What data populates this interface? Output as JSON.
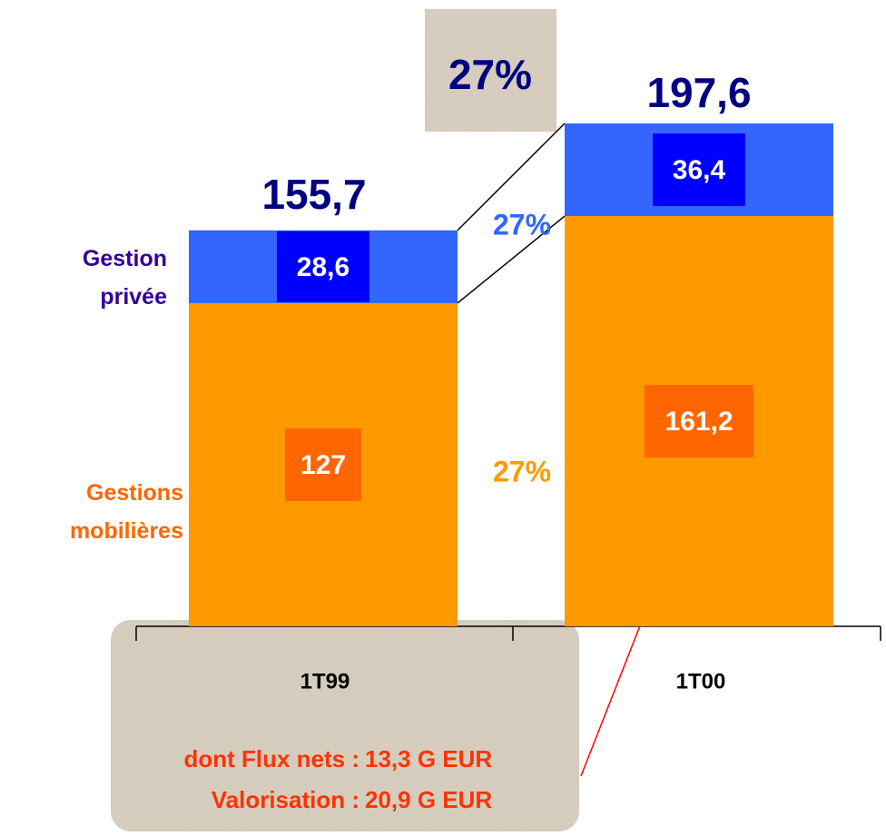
{
  "chart_data": {
    "type": "bar",
    "stacked": true,
    "categories": [
      "1T99",
      "1T00"
    ],
    "series": [
      {
        "name": "Gestions mobilières",
        "color": "#FF9900",
        "label_box_color": "#FF6600",
        "name_color": "#FF6600",
        "values": [
          127,
          161.2
        ],
        "value_labels": [
          "127",
          "161,2"
        ]
      },
      {
        "name": "Gestion privée",
        "color": "#3366FF",
        "label_box_color": "#0000FF",
        "name_color": "#330099",
        "values": [
          28.6,
          36.4
        ],
        "value_labels": [
          "28,6",
          "36,4"
        ]
      }
    ],
    "totals": [
      155.7,
      197.6
    ],
    "total_labels": [
      "155,7",
      "197,6"
    ],
    "total_color": "#000080",
    "growth_labels": [
      {
        "text": "27%",
        "color": "#000080"
      },
      {
        "text": "27%",
        "color": "#3366FF"
      },
      {
        "text": "27%",
        "color": "#FF9900"
      }
    ],
    "note": {
      "color": "#FF3300",
      "rows": [
        [
          "dont Flux nets :",
          "13,3 G EUR"
        ],
        [
          "Valorisation :",
          "20,9 G EUR"
        ]
      ]
    }
  }
}
